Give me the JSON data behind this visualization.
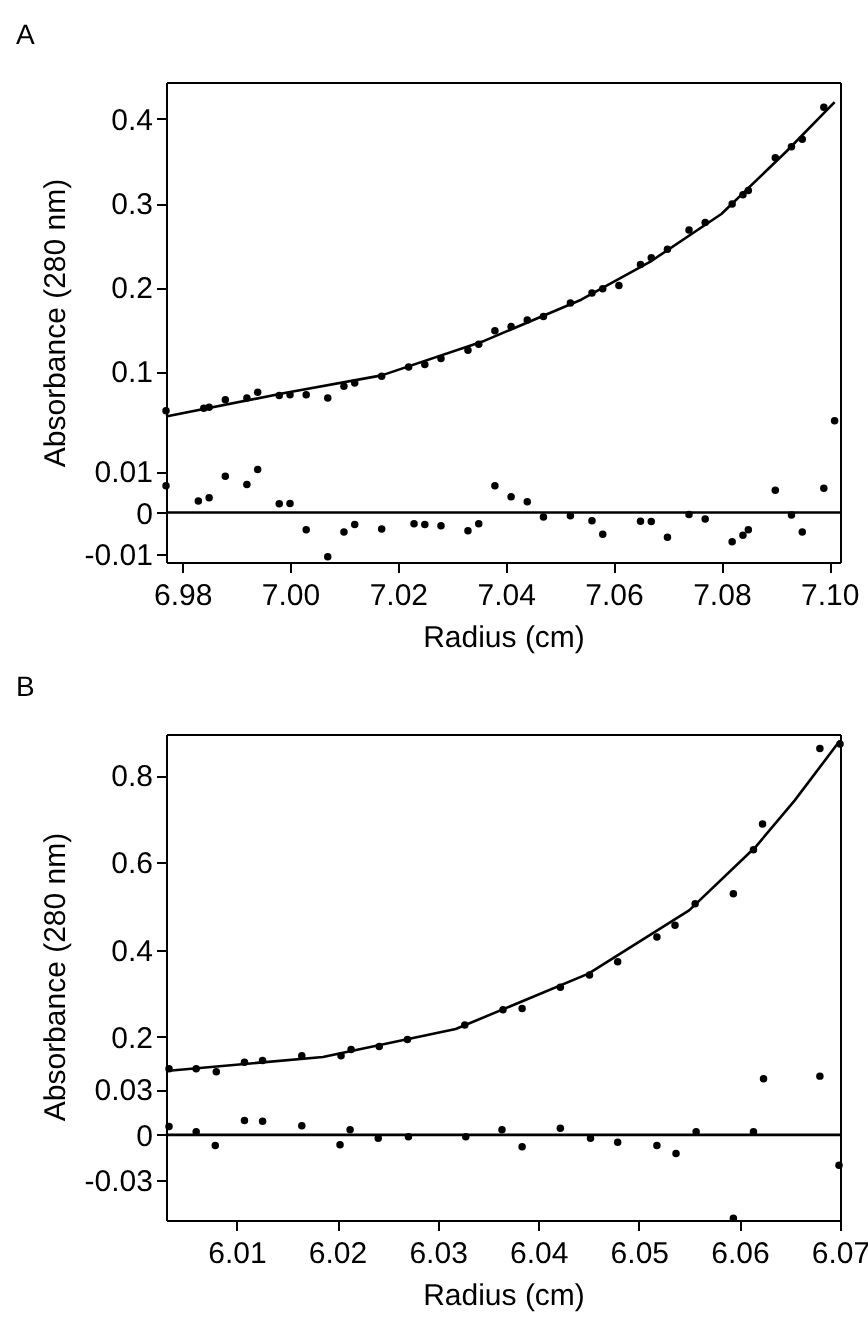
{
  "chart_data": [
    {
      "type": "scatter",
      "title": "A",
      "ylabel": "Absorbance (280 nm)",
      "xlim": [
        6.977,
        7.102
      ],
      "ylim": [
        0.03,
        0.444
      ],
      "yticks": [
        0.1,
        0.2,
        0.3,
        0.4
      ],
      "tick_labels": "y",
      "grid": false,
      "series": [
        {
          "marker": "circle",
          "color": "#000000",
          "x": [
            6.977,
            6.984,
            6.985,
            6.988,
            6.992,
            6.994,
            6.998,
            7.0,
            7.003,
            7.007,
            7.01,
            7.012,
            7.017,
            7.022,
            7.025,
            7.028,
            7.033,
            7.035,
            7.038,
            7.041,
            7.044,
            7.047,
            7.052,
            7.056,
            7.058,
            7.061,
            7.065,
            7.067,
            7.07,
            7.074,
            7.077,
            7.082,
            7.084,
            7.085,
            7.09,
            7.093,
            7.095,
            7.099,
            7.101
          ],
          "values": [
            0.053,
            0.056,
            0.057,
            0.066,
            0.068,
            0.075,
            0.071,
            0.072,
            0.072,
            0.068,
            0.082,
            0.086,
            0.094,
            0.105,
            0.108,
            0.115,
            0.125,
            0.132,
            0.148,
            0.153,
            0.161,
            0.165,
            0.181,
            0.193,
            0.198,
            0.202,
            0.227,
            0.235,
            0.245,
            0.268,
            0.277,
            0.299,
            0.31,
            0.315,
            0.354,
            0.367,
            0.376,
            0.414,
            0.041
          ]
        },
        {
          "type": "line",
          "color": "#000000",
          "x": [
            6.977,
            6.999,
            7.017,
            7.036,
            7.054,
            7.067,
            7.08,
            7.092,
            7.101
          ],
          "values": [
            0.046,
            0.074,
            0.095,
            0.136,
            0.185,
            0.231,
            0.287,
            0.361,
            0.42
          ]
        }
      ]
    },
    {
      "type": "scatter",
      "xlabel": "Radius (cm)",
      "xlim": [
        6.977,
        7.102
      ],
      "ylim": [
        -0.012,
        0.02
      ],
      "xticks": [
        6.98,
        {
          "value": 7,
          "label": "7.00"
        },
        7.02,
        7.04,
        7.06,
        7.08,
        {
          "value": 7.1,
          "label": "7.10"
        }
      ],
      "yticks": [
        0.01,
        0,
        -0.01
      ],
      "grid": false,
      "ref_lines": [
        {
          "axis": "y",
          "value": 0
        }
      ],
      "series": [
        {
          "marker": "circle",
          "color": "#000000",
          "x": [
            6.977,
            6.983,
            6.985,
            6.988,
            6.992,
            6.994,
            6.998,
            7.0,
            7.003,
            7.007,
            7.01,
            7.012,
            7.017,
            7.023,
            7.025,
            7.028,
            7.033,
            7.035,
            7.038,
            7.041,
            7.044,
            7.047,
            7.052,
            7.056,
            7.058,
            7.065,
            7.067,
            7.07,
            7.074,
            7.077,
            7.082,
            7.084,
            7.085,
            7.09,
            7.093,
            7.095,
            7.099
          ],
          "values": [
            0.0065,
            0.0028,
            0.0036,
            0.0088,
            0.0068,
            0.0104,
            0.0021,
            0.0022,
            -0.0042,
            -0.0107,
            -0.0047,
            -0.0029,
            -0.004,
            -0.0027,
            -0.0029,
            -0.0032,
            -0.0044,
            -0.0027,
            0.0065,
            0.0038,
            0.0026,
            -0.0011,
            -0.0008,
            -0.002,
            -0.0053,
            -0.0021,
            -0.0022,
            -0.006,
            -0.0005,
            -0.0016,
            -0.0071,
            -0.0055,
            -0.0042,
            0.0054,
            -0.0006,
            -0.0047,
            0.0059
          ]
        }
      ]
    },
    {
      "type": "scatter",
      "title": "B",
      "ylabel": "Absorbance (280 nm)",
      "xlim": [
        6.003,
        6.07
      ],
      "ylim": [
        0.115,
        0.894
      ],
      "yticks": [
        0.2,
        0.4,
        0.6,
        0.8
      ],
      "tick_labels": "y",
      "grid": false,
      "series": [
        {
          "marker": "circle",
          "color": "#000000",
          "x": [
            6.0033,
            6.006,
            6.008,
            6.0108,
            6.0126,
            6.0165,
            6.0204,
            6.0214,
            6.0242,
            6.027,
            6.0327,
            6.0365,
            6.0384,
            6.0422,
            6.0451,
            6.0479,
            6.0518,
            6.0536,
            6.0556,
            6.0594,
            6.0614,
            6.0623,
            6.068,
            6.07
          ],
          "values": [
            0.127,
            0.127,
            0.12,
            0.142,
            0.146,
            0.157,
            0.157,
            0.171,
            0.178,
            0.194,
            0.227,
            0.262,
            0.265,
            0.314,
            0.342,
            0.372,
            0.429,
            0.456,
            0.505,
            0.528,
            0.629,
            0.688,
            0.861,
            0.871
          ]
        },
        {
          "type": "line",
          "color": "#000000",
          "x": [
            6.003,
            6.0186,
            6.0318,
            6.045,
            6.055,
            6.0616,
            6.0655,
            6.07
          ],
          "values": [
            0.122,
            0.154,
            0.218,
            0.345,
            0.49,
            0.635,
            0.742,
            0.879
          ]
        }
      ]
    },
    {
      "type": "scatter",
      "xlabel": "Radius (cm)",
      "xlim": [
        6.003,
        6.07
      ],
      "ylim": [
        -0.056,
        0.04
      ],
      "xticks": [
        6.01,
        6.02,
        6.03,
        6.04,
        6.05,
        6.06,
        6.07
      ],
      "yticks": [
        0.03,
        0,
        -0.03
      ],
      "grid": false,
      "ref_lines": [
        {
          "axis": "y",
          "value": 0
        }
      ],
      "series": [
        {
          "marker": "circle",
          "color": "#000000",
          "x": [
            6.0033,
            6.006,
            6.0079,
            6.0108,
            6.0126,
            6.0165,
            6.0203,
            6.0213,
            6.0241,
            6.0271,
            6.0328,
            6.0364,
            6.0384,
            6.0422,
            6.0452,
            6.0479,
            6.0518,
            6.0537,
            6.0557,
            6.0594,
            6.0614,
            6.0624,
            6.068,
            6.0699
          ],
          "values": [
            0.0055,
            0.002,
            -0.007,
            0.0095,
            0.009,
            0.006,
            -0.0065,
            0.0034,
            -0.0022,
            -0.0013,
            -0.0013,
            0.0034,
            -0.0078,
            0.0043,
            -0.0022,
            -0.0048,
            -0.007,
            -0.0122,
            0.002,
            -0.0548,
            0.002,
            0.0369,
            0.0386,
            -0.02
          ]
        }
      ]
    }
  ]
}
